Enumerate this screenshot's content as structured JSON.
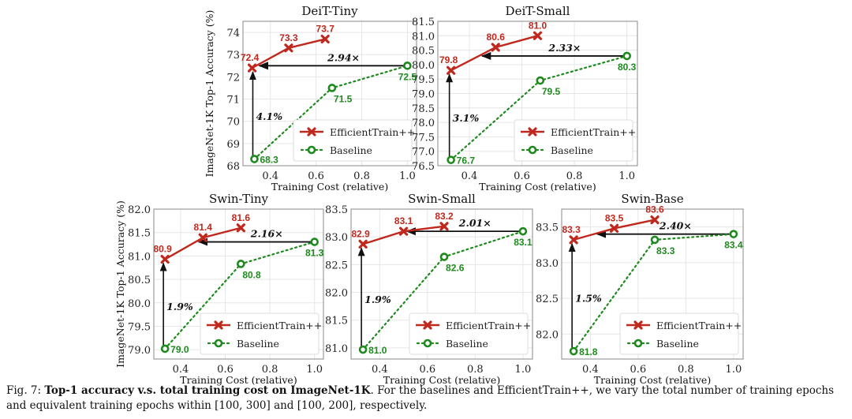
{
  "colors": {
    "efficient": "#c0281e",
    "baseline": "#1e8a1e",
    "arrow": "#111111",
    "grid": "#e6e6e6"
  },
  "caption": {
    "prefix": "Fig. 7: ",
    "bold": "Top-1 accuracy v.s. total training cost on ImageNet-1K",
    "rest": ". For the baselines and EfficientTrain++, we vary the total number of training epochs and equivalent training epochs within [100, 300] and [100, 200], respectively."
  },
  "chart_data": [
    {
      "type": "line",
      "title": "DeiT-Tiny",
      "xlabel": "Training Cost (relative)",
      "ylabel": "ImageNet-1K Top-1 Accuracy (%)",
      "xlim": [
        0.28,
        1.04
      ],
      "ylim": [
        68,
        74.5
      ],
      "xticks": [
        "0.4",
        "0.6",
        "0.8",
        "1.0"
      ],
      "yticks": [
        "68",
        "69",
        "70",
        "71",
        "72",
        "73",
        "74"
      ],
      "grid": true,
      "legend": "lower-right",
      "series": [
        {
          "name": "EfficientTrain++",
          "style": "solid-x",
          "x": [
            0.32,
            0.48,
            0.64
          ],
          "y": [
            72.4,
            73.3,
            73.7
          ],
          "labels": [
            "72.4",
            "73.3",
            "73.7"
          ]
        },
        {
          "name": "Baseline",
          "style": "dotted-o",
          "x": [
            0.33,
            0.67,
            1.0
          ],
          "y": [
            68.3,
            71.5,
            72.5
          ],
          "labels": [
            "68.3",
            "71.5",
            "72.5"
          ]
        }
      ],
      "annotations": {
        "speedup": "2.94×",
        "gain": "4.1%"
      }
    },
    {
      "type": "line",
      "title": "DeiT-Small",
      "xlabel": "Training Cost (relative)",
      "ylabel": "",
      "xlim": [
        0.28,
        1.04
      ],
      "ylim": [
        76.5,
        81.5
      ],
      "xticks": [
        "0.4",
        "0.6",
        "0.8",
        "1.0"
      ],
      "yticks": [
        "76.5",
        "77.0",
        "77.5",
        "78.0",
        "78.5",
        "79.0",
        "79.5",
        "80.0",
        "80.5",
        "81.0",
        "81.5"
      ],
      "grid": true,
      "legend": "lower-right",
      "series": [
        {
          "name": "EfficientTrain++",
          "style": "solid-x",
          "x": [
            0.33,
            0.5,
            0.66
          ],
          "y": [
            79.8,
            80.6,
            81.0
          ],
          "labels": [
            "79.8",
            "80.6",
            "81.0"
          ]
        },
        {
          "name": "Baseline",
          "style": "dotted-o",
          "x": [
            0.33,
            0.67,
            1.0
          ],
          "y": [
            76.7,
            79.45,
            80.3
          ],
          "labels": [
            "76.7",
            "79.5",
            "80.3"
          ]
        }
      ],
      "annotations": {
        "speedup": "2.33×",
        "gain": "3.1%"
      }
    },
    {
      "type": "line",
      "title": "Swin-Tiny",
      "xlabel": "Training Cost (relative)",
      "ylabel": "ImageNet-1K Top-1 Accuracy (%)",
      "xlim": [
        0.28,
        1.04
      ],
      "ylim": [
        78.8,
        82.0
      ],
      "xticks": [
        "0.4",
        "0.6",
        "0.8",
        "1.0"
      ],
      "yticks": [
        "79.0",
        "79.5",
        "80.0",
        "80.5",
        "81.0",
        "81.5",
        "82.0"
      ],
      "grid": true,
      "legend": "lower-right",
      "series": [
        {
          "name": "EfficientTrain++",
          "style": "solid-x",
          "x": [
            0.33,
            0.5,
            0.67
          ],
          "y": [
            80.93,
            81.39,
            81.6
          ],
          "labels": [
            "80.9",
            "81.4",
            "81.6"
          ]
        },
        {
          "name": "Baseline",
          "style": "dotted-o",
          "x": [
            0.33,
            0.67,
            1.0
          ],
          "y": [
            79.02,
            80.83,
            81.3
          ],
          "labels": [
            "79.0",
            "80.8",
            "81.3"
          ]
        }
      ],
      "annotations": {
        "speedup": "2.16×",
        "gain": "1.9%"
      }
    },
    {
      "type": "line",
      "title": "Swin-Small",
      "xlabel": "Training Cost (relative)",
      "ylabel": "",
      "xlim": [
        0.28,
        1.04
      ],
      "ylim": [
        80.8,
        83.5
      ],
      "xticks": [
        "0.4",
        "0.6",
        "0.8",
        "1.0"
      ],
      "yticks": [
        "81.0",
        "81.5",
        "82.0",
        "82.5",
        "83.0",
        "83.5"
      ],
      "grid": true,
      "legend": "lower-right",
      "series": [
        {
          "name": "EfficientTrain++",
          "style": "solid-x",
          "x": [
            0.33,
            0.5,
            0.67
          ],
          "y": [
            82.87,
            83.1,
            83.19
          ],
          "labels": [
            "82.9",
            "83.1",
            "83.2"
          ]
        },
        {
          "name": "Baseline",
          "style": "dotted-o",
          "x": [
            0.33,
            0.67,
            1.0
          ],
          "y": [
            80.97,
            82.64,
            83.1
          ],
          "labels": [
            "81.0",
            "82.6",
            "83.1"
          ]
        }
      ],
      "annotations": {
        "speedup": "2.01×",
        "gain": "1.9%"
      }
    },
    {
      "type": "line",
      "title": "Swin-Base",
      "xlabel": "Training Cost (relative)",
      "ylabel": "",
      "xlim": [
        0.28,
        1.04
      ],
      "ylim": [
        81.65,
        83.75
      ],
      "xticks": [
        "0.4",
        "0.6",
        "0.8",
        "1.0"
      ],
      "yticks": [
        "82.0",
        "82.5",
        "83.0",
        "83.5"
      ],
      "grid": true,
      "legend": "lower-right",
      "series": [
        {
          "name": "EfficientTrain++",
          "style": "solid-x",
          "x": [
            0.33,
            0.5,
            0.67
          ],
          "y": [
            83.32,
            83.48,
            83.6
          ],
          "labels": [
            "83.3",
            "83.5",
            "83.6"
          ]
        },
        {
          "name": "Baseline",
          "style": "dotted-o",
          "x": [
            0.33,
            0.67,
            1.0
          ],
          "y": [
            81.76,
            83.32,
            83.4
          ],
          "labels": [
            "81.8",
            "83.3",
            "83.4"
          ]
        }
      ],
      "annotations": {
        "speedup": "2.40×",
        "gain": "1.5%"
      }
    }
  ]
}
